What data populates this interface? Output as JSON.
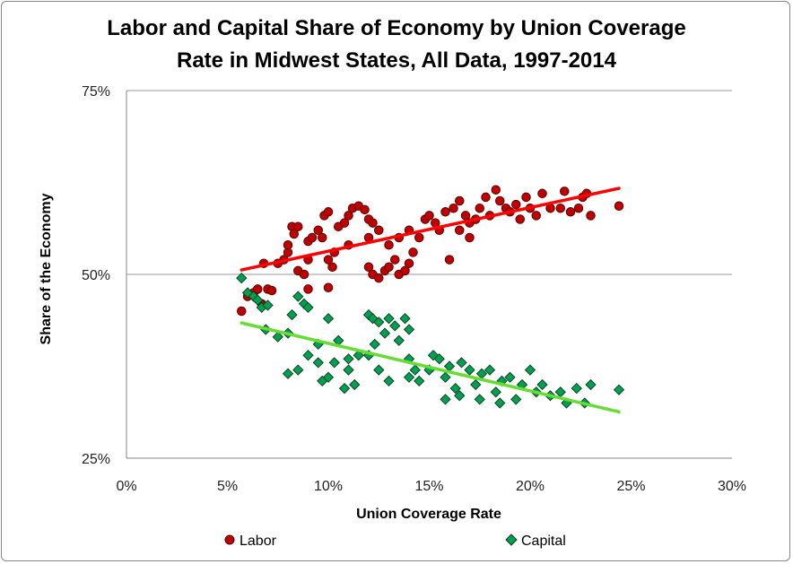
{
  "chart_data": {
    "type": "scatter",
    "title": "Labor and Capital Share of Economy by Union Coverage Rate in Midwest States, All Data, 1997-2014",
    "title_lines": [
      "Labor and Capital Share of Economy by Union Coverage",
      "Rate in Midwest States, All Data, 1997-2014"
    ],
    "xlabel": "Union Coverage Rate",
    "ylabel": "Share of the Economy",
    "xlim": [
      0,
      30
    ],
    "ylim": [
      25,
      75
    ],
    "x_ticks": [
      "0%",
      "5%",
      "10%",
      "15%",
      "20%",
      "25%",
      "30%"
    ],
    "y_ticks": [
      "25%",
      "50%",
      "75%"
    ],
    "grid": "horizontal",
    "legend_position": "bottom",
    "series": [
      {
        "name": "Labor",
        "marker": "circle",
        "color": "#c00000",
        "trendline": {
          "color": "#ff0000",
          "x": [
            5.7,
            24.4
          ],
          "y": [
            50.6,
            61.7
          ]
        },
        "points": [
          [
            5.7,
            45
          ],
          [
            6,
            47
          ],
          [
            6.3,
            47.5
          ],
          [
            6.5,
            48
          ],
          [
            6.7,
            46
          ],
          [
            7,
            48
          ],
          [
            7.2,
            47.8
          ],
          [
            6.8,
            51.5
          ],
          [
            7.5,
            51.5
          ],
          [
            7.8,
            52
          ],
          [
            8,
            53
          ],
          [
            8.2,
            56.5
          ],
          [
            8.5,
            56.5
          ],
          [
            8,
            54
          ],
          [
            8.3,
            55.5
          ],
          [
            8.5,
            50.5
          ],
          [
            8.8,
            50
          ],
          [
            9,
            52
          ],
          [
            9,
            54.5
          ],
          [
            9.2,
            55
          ],
          [
            9.5,
            56
          ],
          [
            9.8,
            58
          ],
          [
            10,
            58.5
          ],
          [
            9.7,
            55
          ],
          [
            10,
            52
          ],
          [
            10.2,
            51
          ],
          [
            10.3,
            53
          ],
          [
            10.5,
            56.5
          ],
          [
            10.8,
            57
          ],
          [
            11,
            58
          ],
          [
            11.2,
            59
          ],
          [
            11.5,
            59.3
          ],
          [
            11.8,
            58.8
          ],
          [
            12,
            57.5
          ],
          [
            12.2,
            57
          ],
          [
            12.5,
            56
          ],
          [
            12,
            51
          ],
          [
            12.2,
            50
          ],
          [
            12.5,
            49.5
          ],
          [
            12.8,
            50.5
          ],
          [
            13,
            51
          ],
          [
            13.3,
            52
          ],
          [
            13.5,
            50
          ],
          [
            13.8,
            50.5
          ],
          [
            14,
            51.5
          ],
          [
            14.2,
            53
          ],
          [
            14.5,
            55
          ],
          [
            14.8,
            57.5
          ],
          [
            15,
            58
          ],
          [
            15.3,
            57
          ],
          [
            15.5,
            56
          ],
          [
            15.8,
            58.5
          ],
          [
            16,
            52
          ],
          [
            16.2,
            59
          ],
          [
            16.5,
            60
          ],
          [
            16.8,
            58
          ],
          [
            17,
            57
          ],
          [
            17.3,
            57.5
          ],
          [
            17.5,
            59
          ],
          [
            17.8,
            60.5
          ],
          [
            18,
            58
          ],
          [
            18.3,
            61.5
          ],
          [
            18.5,
            60
          ],
          [
            18.8,
            59
          ],
          [
            19,
            58.5
          ],
          [
            19.3,
            59.5
          ],
          [
            19.5,
            57.5
          ],
          [
            19.8,
            60.5
          ],
          [
            20,
            59
          ],
          [
            20.3,
            58
          ],
          [
            20.6,
            61
          ],
          [
            21,
            59
          ],
          [
            21.5,
            59
          ],
          [
            21.7,
            61.3
          ],
          [
            22,
            58.5
          ],
          [
            22.4,
            59
          ],
          [
            22.6,
            60.5
          ],
          [
            22.8,
            61
          ],
          [
            23,
            58
          ],
          [
            24.4,
            59.3
          ],
          [
            13,
            54
          ],
          [
            13.5,
            55
          ],
          [
            14,
            56
          ],
          [
            9,
            48
          ],
          [
            10,
            48.2
          ],
          [
            16.5,
            56
          ],
          [
            17,
            55
          ],
          [
            12,
            55
          ],
          [
            11,
            54
          ]
        ]
      },
      {
        "name": "Capital",
        "marker": "diamond",
        "color": "#00a050",
        "trendline": {
          "color": "#66dd33",
          "x": [
            5.7,
            24.4
          ],
          "y": [
            43.4,
            31.3
          ]
        },
        "points": [
          [
            5.7,
            49.5
          ],
          [
            6,
            47.5
          ],
          [
            6.3,
            47
          ],
          [
            6.5,
            46.5
          ],
          [
            6.7,
            45.5
          ],
          [
            7,
            45.8
          ],
          [
            6.9,
            42.5
          ],
          [
            7.5,
            41.5
          ],
          [
            8,
            42
          ],
          [
            8.2,
            44.5
          ],
          [
            8.5,
            47
          ],
          [
            8.8,
            46
          ],
          [
            9,
            45.5
          ],
          [
            8,
            36.5
          ],
          [
            8.5,
            37
          ],
          [
            9,
            39
          ],
          [
            9.5,
            38
          ],
          [
            9.7,
            35.5
          ],
          [
            10,
            44
          ],
          [
            10,
            36
          ],
          [
            10.3,
            38
          ],
          [
            10.5,
            41
          ],
          [
            10.8,
            34.5
          ],
          [
            11,
            38.5
          ],
          [
            11.3,
            35
          ],
          [
            11.5,
            39
          ],
          [
            12,
            44.5
          ],
          [
            12.2,
            44
          ],
          [
            12.5,
            43.5
          ],
          [
            12.8,
            42
          ],
          [
            13,
            44
          ],
          [
            13.3,
            43
          ],
          [
            13.5,
            41
          ],
          [
            13.8,
            44
          ],
          [
            14,
            42.5
          ],
          [
            12,
            39
          ],
          [
            12.5,
            37
          ],
          [
            13,
            35.5
          ],
          [
            14,
            38.5
          ],
          [
            14.3,
            37
          ],
          [
            14.5,
            35.5
          ],
          [
            15,
            37
          ],
          [
            15.2,
            39
          ],
          [
            15.5,
            38.5
          ],
          [
            15.8,
            36
          ],
          [
            16,
            37.5
          ],
          [
            16.3,
            34.5
          ],
          [
            16.6,
            38
          ],
          [
            17,
            37
          ],
          [
            17.3,
            35
          ],
          [
            17.6,
            36.5
          ],
          [
            18,
            37
          ],
          [
            18.3,
            34
          ],
          [
            18.6,
            35.5
          ],
          [
            19,
            36
          ],
          [
            19.3,
            33
          ],
          [
            19.6,
            35
          ],
          [
            20,
            37
          ],
          [
            20.3,
            34
          ],
          [
            20.6,
            35
          ],
          [
            21,
            33.5
          ],
          [
            21.5,
            34
          ],
          [
            21.8,
            32.5
          ],
          [
            22.3,
            34.5
          ],
          [
            22.7,
            32.5
          ],
          [
            23,
            35
          ],
          [
            24.4,
            34.3
          ],
          [
            15.8,
            33
          ],
          [
            16.5,
            33.5
          ],
          [
            17.5,
            33
          ],
          [
            18.5,
            32.5
          ],
          [
            9.5,
            40.5
          ],
          [
            11,
            37
          ],
          [
            12.3,
            40.5
          ],
          [
            14,
            36
          ]
        ]
      }
    ]
  }
}
